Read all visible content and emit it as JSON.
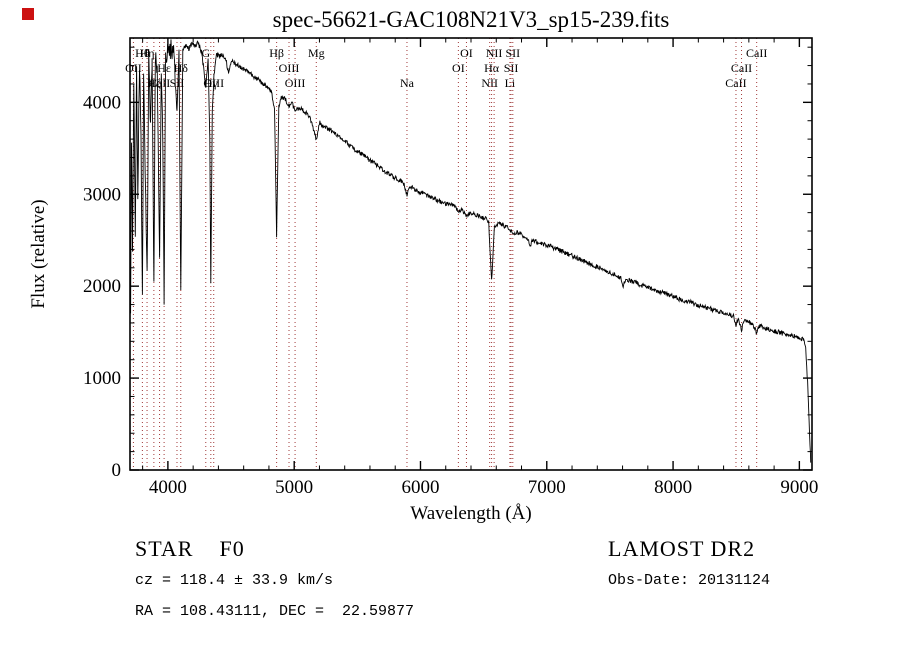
{
  "colors": {
    "background": "#ffffff",
    "trace": "#000000",
    "marker_line": "#a03838",
    "corner_marker": "#cc1111",
    "text": "#000000"
  },
  "corner_marker_color": "#cc1111",
  "annotations": {
    "class_label": "STAR    F0",
    "cz": "cz = 118.4 ± 33.9 km/s",
    "ra_dec": "RA = 108.43111, DEC =  22.59877",
    "survey": "LAMOST DR2",
    "obs_date": "Obs-Date: 20131124"
  },
  "chart_data": {
    "type": "line",
    "title": "spec-56621-GAC108N21V3_sp15-239.fits",
    "xlabel": "Wavelength (Å)",
    "ylabel": "Flux (relative)",
    "xlim": [
      3700,
      9100
    ],
    "ylim": [
      0,
      4700
    ],
    "xticks": [
      4000,
      5000,
      6000,
      7000,
      8000,
      9000
    ],
    "yticks": [
      0,
      1000,
      2000,
      3000,
      4000
    ],
    "x_minor_step": 200,
    "y_minor_step": 200,
    "grid": false,
    "legend": "none",
    "spectral_lines": [
      {
        "wavelength": 3727,
        "label": "OII",
        "row": 1
      },
      {
        "wavelength": 3798,
        "label": "Hθ",
        "row": 0
      },
      {
        "wavelength": 3835,
        "label": "Hη",
        "row": 0
      },
      {
        "wavelength": 3889,
        "label": "Hζ",
        "row": 2
      },
      {
        "wavelength": 3934,
        "label": "CaII",
        "row": 2
      },
      {
        "wavelength": 3970,
        "label": "Hε",
        "row": 1
      },
      {
        "wavelength": 4072,
        "label": "SII",
        "row": 2
      },
      {
        "wavelength": 4102,
        "label": "Hδ",
        "row": 1
      },
      {
        "wavelength": 4300,
        "label": "G",
        "row": 0
      },
      {
        "wavelength": 4340,
        "label": "Hγ",
        "row": 2
      },
      {
        "wavelength": 4363,
        "label": "OIII",
        "row": 2
      },
      {
        "wavelength": 4861,
        "label": "Hβ",
        "row": 0
      },
      {
        "wavelength": 4959,
        "label": "OIII",
        "row": 1
      },
      {
        "wavelength": 5007,
        "label": "OIII",
        "row": 2
      },
      {
        "wavelength": 5175,
        "label": "Mg",
        "row": 0
      },
      {
        "wavelength": 5893,
        "label": "Na",
        "row": 2
      },
      {
        "wavelength": 6300,
        "label": "OI",
        "row": 1
      },
      {
        "wavelength": 6364,
        "label": "OI",
        "row": 0
      },
      {
        "wavelength": 6548,
        "label": "NII",
        "row": 2
      },
      {
        "wavelength": 6563,
        "label": "Hα",
        "row": 1
      },
      {
        "wavelength": 6583,
        "label": "NII",
        "row": 0
      },
      {
        "wavelength": 6708,
        "label": "Li",
        "row": 2
      },
      {
        "wavelength": 6717,
        "label": "SII",
        "row": 1
      },
      {
        "wavelength": 6731,
        "label": "SII",
        "row": 0
      },
      {
        "wavelength": 8498,
        "label": "CaII",
        "row": 2
      },
      {
        "wavelength": 8542,
        "label": "CaII",
        "row": 1
      },
      {
        "wavelength": 8662,
        "label": "CaII",
        "row": 0
      }
    ],
    "spectrum": [
      [
        3705,
        1750
      ],
      [
        3712,
        3600
      ],
      [
        3720,
        2400
      ],
      [
        3730,
        4250
      ],
      [
        3742,
        2550
      ],
      [
        3752,
        4380
      ],
      [
        3762,
        2900
      ],
      [
        3775,
        4430
      ],
      [
        3788,
        3500
      ],
      [
        3798,
        1850
      ],
      [
        3808,
        4380
      ],
      [
        3820,
        3200
      ],
      [
        3835,
        2100
      ],
      [
        3848,
        4480
      ],
      [
        3862,
        3800
      ],
      [
        3875,
        4500
      ],
      [
        3889,
        1950
      ],
      [
        3900,
        4520
      ],
      [
        3915,
        4350
      ],
      [
        3934,
        2250
      ],
      [
        3948,
        4420
      ],
      [
        3960,
        3500
      ],
      [
        3970,
        1900
      ],
      [
        3982,
        4480
      ],
      [
        4000,
        4540
      ],
      [
        4025,
        4580
      ],
      [
        4050,
        4500
      ],
      [
        4072,
        3900
      ],
      [
        4088,
        4550
      ],
      [
        4102,
        1950
      ],
      [
        4118,
        4560
      ],
      [
        4140,
        4620
      ],
      [
        4165,
        4580
      ],
      [
        4190,
        4640
      ],
      [
        4215,
        4600
      ],
      [
        4240,
        4650
      ],
      [
        4265,
        4550
      ],
      [
        4285,
        4350
      ],
      [
        4300,
        4150
      ],
      [
        4318,
        4480
      ],
      [
        4332,
        3600
      ],
      [
        4340,
        2050
      ],
      [
        4352,
        3900
      ],
      [
        4365,
        4300
      ],
      [
        4385,
        4520
      ],
      [
        4410,
        4500
      ],
      [
        4435,
        4520
      ],
      [
        4460,
        4460
      ],
      [
        4481,
        4300
      ],
      [
        4500,
        4450
      ],
      [
        4525,
        4430
      ],
      [
        4550,
        4410
      ],
      [
        4580,
        4380
      ],
      [
        4610,
        4350
      ],
      [
        4640,
        4320
      ],
      [
        4670,
        4290
      ],
      [
        4700,
        4260
      ],
      [
        4730,
        4230
      ],
      [
        4760,
        4200
      ],
      [
        4790,
        4160
      ],
      [
        4820,
        4120
      ],
      [
        4845,
        3900
      ],
      [
        4861,
        2550
      ],
      [
        4878,
        3950
      ],
      [
        4900,
        4060
      ],
      [
        4930,
        4030
      ],
      [
        4959,
        3960
      ],
      [
        4985,
        3990
      ],
      [
        5007,
        3900
      ],
      [
        5040,
        3940
      ],
      [
        5080,
        3900
      ],
      [
        5120,
        3850
      ],
      [
        5155,
        3700
      ],
      [
        5175,
        3600
      ],
      [
        5200,
        3780
      ],
      [
        5240,
        3740
      ],
      [
        5280,
        3700
      ],
      [
        5320,
        3660
      ],
      [
        5360,
        3620
      ],
      [
        5400,
        3580
      ],
      [
        5440,
        3530
      ],
      [
        5480,
        3490
      ],
      [
        5520,
        3450
      ],
      [
        5560,
        3410
      ],
      [
        5600,
        3370
      ],
      [
        5640,
        3330
      ],
      [
        5680,
        3290
      ],
      [
        5720,
        3250
      ],
      [
        5760,
        3210
      ],
      [
        5800,
        3180
      ],
      [
        5840,
        3150
      ],
      [
        5870,
        3100
      ],
      [
        5893,
        2980
      ],
      [
        5915,
        3080
      ],
      [
        5950,
        3060
      ],
      [
        6000,
        3020
      ],
      [
        6050,
        2990
      ],
      [
        6100,
        2960
      ],
      [
        6150,
        2930
      ],
      [
        6200,
        2900
      ],
      [
        6250,
        2880
      ],
      [
        6290,
        2840
      ],
      [
        6300,
        2800
      ],
      [
        6320,
        2840
      ],
      [
        6364,
        2760
      ],
      [
        6390,
        2800
      ],
      [
        6430,
        2780
      ],
      [
        6470,
        2760
      ],
      [
        6510,
        2740
      ],
      [
        6540,
        2700
      ],
      [
        6563,
        2050
      ],
      [
        6585,
        2650
      ],
      [
        6620,
        2690
      ],
      [
        6660,
        2660
      ],
      [
        6700,
        2630
      ],
      [
        6717,
        2590
      ],
      [
        6731,
        2570
      ],
      [
        6760,
        2590
      ],
      [
        6800,
        2560
      ],
      [
        6840,
        2530
      ],
      [
        6870,
        2450
      ],
      [
        6890,
        2500
      ],
      [
        6930,
        2480
      ],
      [
        6970,
        2460
      ],
      [
        7000,
        2450
      ],
      [
        7050,
        2420
      ],
      [
        7100,
        2390
      ],
      [
        7150,
        2360
      ],
      [
        7200,
        2330
      ],
      [
        7250,
        2300
      ],
      [
        7300,
        2270
      ],
      [
        7350,
        2240
      ],
      [
        7400,
        2210
      ],
      [
        7450,
        2180
      ],
      [
        7500,
        2150
      ],
      [
        7550,
        2120
      ],
      [
        7590,
        2080
      ],
      [
        7605,
        2000
      ],
      [
        7625,
        2080
      ],
      [
        7660,
        2060
      ],
      [
        7700,
        2040
      ],
      [
        7750,
        2010
      ],
      [
        7800,
        1990
      ],
      [
        7850,
        1960
      ],
      [
        7900,
        1940
      ],
      [
        7950,
        1910
      ],
      [
        8000,
        1890
      ],
      [
        8050,
        1860
      ],
      [
        8100,
        1840
      ],
      [
        8150,
        1820
      ],
      [
        8200,
        1790
      ],
      [
        8250,
        1770
      ],
      [
        8300,
        1750
      ],
      [
        8350,
        1730
      ],
      [
        8400,
        1710
      ],
      [
        8450,
        1690
      ],
      [
        8480,
        1670
      ],
      [
        8498,
        1560
      ],
      [
        8515,
        1650
      ],
      [
        8542,
        1520
      ],
      [
        8560,
        1630
      ],
      [
        8600,
        1610
      ],
      [
        8630,
        1590
      ],
      [
        8662,
        1490
      ],
      [
        8680,
        1570
      ],
      [
        8720,
        1550
      ],
      [
        8760,
        1530
      ],
      [
        8800,
        1510
      ],
      [
        8840,
        1500
      ],
      [
        8880,
        1480
      ],
      [
        8920,
        1470
      ],
      [
        8960,
        1455
      ],
      [
        9000,
        1440
      ],
      [
        9030,
        1420
      ],
      [
        9050,
        1330
      ],
      [
        9065,
        950
      ],
      [
        9080,
        400
      ],
      [
        9090,
        80
      ]
    ]
  }
}
